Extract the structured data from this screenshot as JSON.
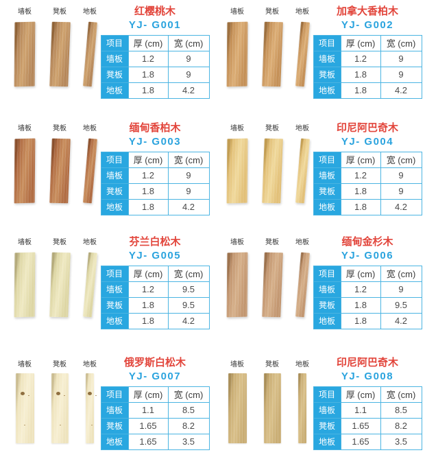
{
  "colors": {
    "title_red": "#e2453b",
    "model_blue": "#2aa3de",
    "table_accent": "#29a7e0",
    "table_border": "#4ab4e2",
    "cell_text": "#4a4a4a",
    "label_text": "#333333"
  },
  "board_labels": [
    "墙板",
    "凳板",
    "地板"
  ],
  "table": {
    "headers": [
      "项目",
      "厚 (cm)",
      "宽 (cm)"
    ],
    "row_labels": [
      "墙板",
      "凳板",
      "地板"
    ]
  },
  "products": [
    {
      "name": "红樱桃木",
      "model": "YJ- G001",
      "rows": [
        [
          "1.2",
          "9"
        ],
        [
          "1.8",
          "9"
        ],
        [
          "1.8",
          "4.2"
        ]
      ],
      "wood_vars": "--e:#8f6236;--m:#b5875a;--l:#cfa36f"
    },
    {
      "name": "加拿大香柏木",
      "model": "YJ- G002",
      "rows": [
        [
          "1.2",
          "9"
        ],
        [
          "1.8",
          "9"
        ],
        [
          "1.8",
          "4.2"
        ]
      ],
      "wood_vars": "--e:#9b6d3c;--m:#c49057;--l:#dcae76"
    },
    {
      "name": "缅甸香柏木",
      "model": "YJ- G003",
      "rows": [
        [
          "1.2",
          "9"
        ],
        [
          "1.8",
          "9"
        ],
        [
          "1.8",
          "4.2"
        ]
      ],
      "wood_vars": "--e:#8a4f2c;--m:#b06c43;--l:#c98f5e"
    },
    {
      "name": "印尼阿巴奇木",
      "model": "YJ- G004",
      "rows": [
        [
          "1.2",
          "9"
        ],
        [
          "1.8",
          "9"
        ],
        [
          "1.8",
          "4.2"
        ]
      ],
      "wood_vars": "--e:#c09a4e;--m:#e2c078;--l:#f0d99c"
    },
    {
      "name": "芬兰白松木",
      "model": "YJ- G005",
      "rows": [
        [
          "1.2",
          "9.5"
        ],
        [
          "1.8",
          "9.5"
        ],
        [
          "1.8",
          "4.2"
        ]
      ],
      "wood_vars": "--e:#b3a979;--m:#ddd6a4;--l:#efe9c2"
    },
    {
      "name": "缅甸金杉木",
      "model": "YJ- G006",
      "rows": [
        [
          "1.2",
          "9"
        ],
        [
          "1.8",
          "9.5"
        ],
        [
          "1.8",
          "4.2"
        ]
      ],
      "wood_vars": "--e:#9a6f4a;--m:#c29670;--l:#d6b08a"
    },
    {
      "name": "俄罗斯白松木",
      "model": "YJ- G007",
      "rows": [
        [
          "1.1",
          "8.5"
        ],
        [
          "1.65",
          "8.2"
        ],
        [
          "1.65",
          "3.5"
        ]
      ],
      "wood_vars": "--e:#cbbd92;--m:#eee3bd;--l:#f7efd2"
    },
    {
      "name": "印尼阿巴奇木",
      "model": "YJ- G008",
      "rows": [
        [
          "1.1",
          "8.5"
        ],
        [
          "1.65",
          "8.2"
        ],
        [
          "1.65",
          "3.5"
        ]
      ],
      "wood_vars": "--e:#a98e58;--m:#c9ad74;--l:#d9c08a"
    }
  ]
}
